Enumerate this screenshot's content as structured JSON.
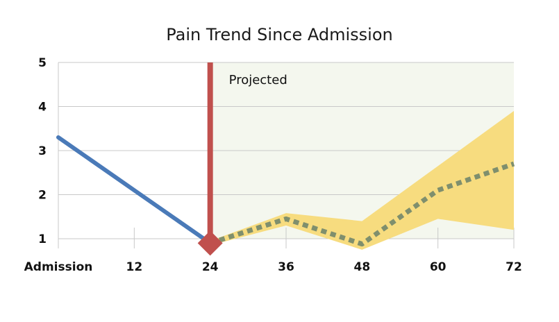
{
  "chart_data": {
    "type": "line",
    "title": "Pain Trend Since Admission",
    "xlabel": "",
    "ylabel": "",
    "x_ticks": [
      {
        "x": 0,
        "label": "Admission"
      },
      {
        "x": 12,
        "label": "12"
      },
      {
        "x": 24,
        "label": "24"
      },
      {
        "x": 36,
        "label": "36"
      },
      {
        "x": 48,
        "label": "48"
      },
      {
        "x": 60,
        "label": "60"
      },
      {
        "x": 72,
        "label": "72"
      }
    ],
    "y_ticks": [
      1,
      2,
      3,
      4,
      5
    ],
    "xlim": [
      0,
      72
    ],
    "ylim": [
      1,
      5
    ],
    "grid": "horizontal",
    "legend": "none",
    "current_marker": {
      "x": 24,
      "y": 0.9
    },
    "projection_region": {
      "x_start": 24,
      "x_end": 72,
      "label": "Projected"
    },
    "series": [
      {
        "style": "solid",
        "color": "#4a7ab8",
        "points": [
          {
            "x": 0,
            "y": 3.3
          },
          {
            "x": 12,
            "y": 2.1
          },
          {
            "x": 24,
            "y": 0.9
          }
        ]
      },
      {
        "style": "dotted",
        "color": "#7f8f6d",
        "points": [
          {
            "x": 24,
            "y": 0.9
          },
          {
            "x": 36,
            "y": 1.45
          },
          {
            "x": 48,
            "y": 0.88
          },
          {
            "x": 60,
            "y": 2.1
          },
          {
            "x": 72,
            "y": 2.7
          }
        ]
      }
    ],
    "band": {
      "color": "#f7dc7f",
      "upper": [
        {
          "x": 24,
          "y": 0.95
        },
        {
          "x": 36,
          "y": 1.58
        },
        {
          "x": 48,
          "y": 1.4
        },
        {
          "x": 60,
          "y": 2.65
        },
        {
          "x": 72,
          "y": 3.9
        }
      ],
      "lower": [
        {
          "x": 24,
          "y": 0.85
        },
        {
          "x": 36,
          "y": 1.3
        },
        {
          "x": 48,
          "y": 0.75
        },
        {
          "x": 60,
          "y": 1.45
        },
        {
          "x": 72,
          "y": 1.2
        }
      ]
    },
    "colors": {
      "projection_bg": "#f4f7ee",
      "marker_line": "#c0504d",
      "grid": "#c8c8c8"
    }
  }
}
